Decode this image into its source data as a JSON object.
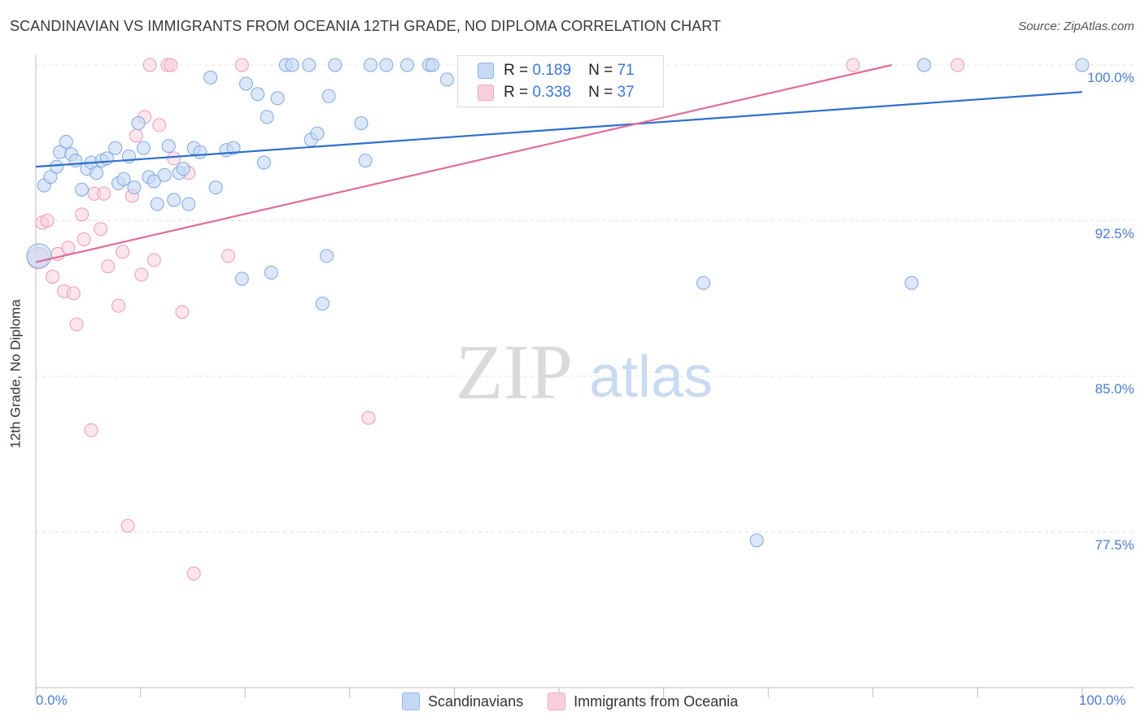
{
  "title": "SCANDINAVIAN VS IMMIGRANTS FROM OCEANIA 12TH GRADE, NO DIPLOMA CORRELATION CHART",
  "source": "Source: ZipAtlas.com",
  "watermark": {
    "zip": "ZIP",
    "atlas": "atlas"
  },
  "legend": {
    "rows": [
      {
        "r_label": "R =",
        "r_value": "0.189",
        "n_label": "N =",
        "n_value": "71"
      },
      {
        "r_label": "R =",
        "r_value": "0.338",
        "n_label": "N =",
        "n_value": "37"
      }
    ]
  },
  "chart_data": {
    "type": "scatter",
    "title": "SCANDINAVIAN VS IMMIGRANTS FROM OCEANIA 12TH GRADE, NO DIPLOMA CORRELATION CHART",
    "xlabel": "",
    "ylabel": "12th Grade, No Diploma",
    "xlim": [
      0,
      100
    ],
    "ylim": [
      72.0,
      101.0
    ],
    "x_tick_labels": [
      "0.0%",
      "100.0%"
    ],
    "y_ticks": [
      77.5,
      85.0,
      92.5,
      100.0
    ],
    "y_tick_labels": [
      "77.5%",
      "85.0%",
      "92.5%",
      "100.0%"
    ],
    "grid": true,
    "legend_position": "bottom",
    "colors": {
      "Scandinavians": "#8fb4e8",
      "Immigrants from Oceania": "#f2a7c0",
      "blue_line": "#2e6fcc",
      "pink_line": "#e06c9a"
    },
    "series": [
      {
        "name": "Scandinavians",
        "trend": {
          "x0": 0,
          "y0": 95.1,
          "x1": 100,
          "y1": 98.7
        },
        "points": [
          [
            0.8,
            94.2
          ],
          [
            1.4,
            94.6
          ],
          [
            2.0,
            95.1
          ],
          [
            2.3,
            95.8
          ],
          [
            2.9,
            96.3
          ],
          [
            3.4,
            95.7
          ],
          [
            3.8,
            95.4
          ],
          [
            4.4,
            94.0
          ],
          [
            4.9,
            95.0
          ],
          [
            5.3,
            95.3
          ],
          [
            5.8,
            94.8
          ],
          [
            6.3,
            95.4
          ],
          [
            6.8,
            95.5
          ],
          [
            7.6,
            96.0
          ],
          [
            7.9,
            94.3
          ],
          [
            8.4,
            94.5
          ],
          [
            8.9,
            95.6
          ],
          [
            9.4,
            94.1
          ],
          [
            9.8,
            97.2
          ],
          [
            10.3,
            96.0
          ],
          [
            10.8,
            94.6
          ],
          [
            11.3,
            94.4
          ],
          [
            11.6,
            93.3
          ],
          [
            12.3,
            94.7
          ],
          [
            12.7,
            96.1
          ],
          [
            13.2,
            93.5
          ],
          [
            13.7,
            94.8
          ],
          [
            14.1,
            95.0
          ],
          [
            14.6,
            93.3
          ],
          [
            15.1,
            96.0
          ],
          [
            15.7,
            95.8
          ],
          [
            16.7,
            99.4
          ],
          [
            17.2,
            94.1
          ],
          [
            18.2,
            95.9
          ],
          [
            18.9,
            96.0
          ],
          [
            19.7,
            89.7
          ],
          [
            20.1,
            99.1
          ],
          [
            21.2,
            98.6
          ],
          [
            21.8,
            95.3
          ],
          [
            22.1,
            97.5
          ],
          [
            22.5,
            90.0
          ],
          [
            23.1,
            98.4
          ],
          [
            23.9,
            100.0
          ],
          [
            24.5,
            100.0
          ],
          [
            26.1,
            100.0
          ],
          [
            26.3,
            96.4
          ],
          [
            26.9,
            96.7
          ],
          [
            27.4,
            88.5
          ],
          [
            27.8,
            90.8
          ],
          [
            28.0,
            98.5
          ],
          [
            28.6,
            100.0
          ],
          [
            31.1,
            97.2
          ],
          [
            31.5,
            95.4
          ],
          [
            32.0,
            100.0
          ],
          [
            33.5,
            100.0
          ],
          [
            35.5,
            100.0
          ],
          [
            37.6,
            100.0
          ],
          [
            37.9,
            100.0
          ],
          [
            39.3,
            99.3
          ],
          [
            42.7,
            100.0
          ],
          [
            47.2,
            100.0
          ],
          [
            51.2,
            100.0
          ],
          [
            57.0,
            100.0
          ],
          [
            63.8,
            89.5
          ],
          [
            68.9,
            77.1
          ],
          [
            83.7,
            89.5
          ],
          [
            100.0,
            100.0
          ],
          [
            0.3,
            90.8
          ],
          [
            56.0,
            100.0
          ],
          [
            84.9,
            100.0
          ],
          [
            41.0,
            100.0
          ]
        ]
      },
      {
        "name": "Immigrants from Oceania",
        "trend": {
          "x0": 0,
          "y0": 90.5,
          "x1": 81.8,
          "y1": 100.0
        },
        "points": [
          [
            0.6,
            92.4
          ],
          [
            1.1,
            92.5
          ],
          [
            1.6,
            89.8
          ],
          [
            2.1,
            90.9
          ],
          [
            2.7,
            89.1
          ],
          [
            3.1,
            91.2
          ],
          [
            3.6,
            89.0
          ],
          [
            3.9,
            87.5
          ],
          [
            4.4,
            92.8
          ],
          [
            4.6,
            91.6
          ],
          [
            5.3,
            82.4
          ],
          [
            5.6,
            93.8
          ],
          [
            6.2,
            92.1
          ],
          [
            6.5,
            93.8
          ],
          [
            6.9,
            90.3
          ],
          [
            7.9,
            88.4
          ],
          [
            8.3,
            91.0
          ],
          [
            8.8,
            77.8
          ],
          [
            9.2,
            93.7
          ],
          [
            9.6,
            96.6
          ],
          [
            10.1,
            89.9
          ],
          [
            10.4,
            97.5
          ],
          [
            10.9,
            100.0
          ],
          [
            11.3,
            90.6
          ],
          [
            11.8,
            97.1
          ],
          [
            12.6,
            100.0
          ],
          [
            12.9,
            100.0
          ],
          [
            13.2,
            95.5
          ],
          [
            14.0,
            88.1
          ],
          [
            14.6,
            94.8
          ],
          [
            15.1,
            75.5
          ],
          [
            18.4,
            90.8
          ],
          [
            19.7,
            100.0
          ],
          [
            31.8,
            83.0
          ],
          [
            78.1,
            100.0
          ],
          [
            88.1,
            100.0
          ],
          [
            0.2,
            90.7
          ]
        ]
      }
    ]
  },
  "bottom_legend": {
    "items": [
      "Scandinavians",
      "Immigrants from Oceania"
    ]
  }
}
